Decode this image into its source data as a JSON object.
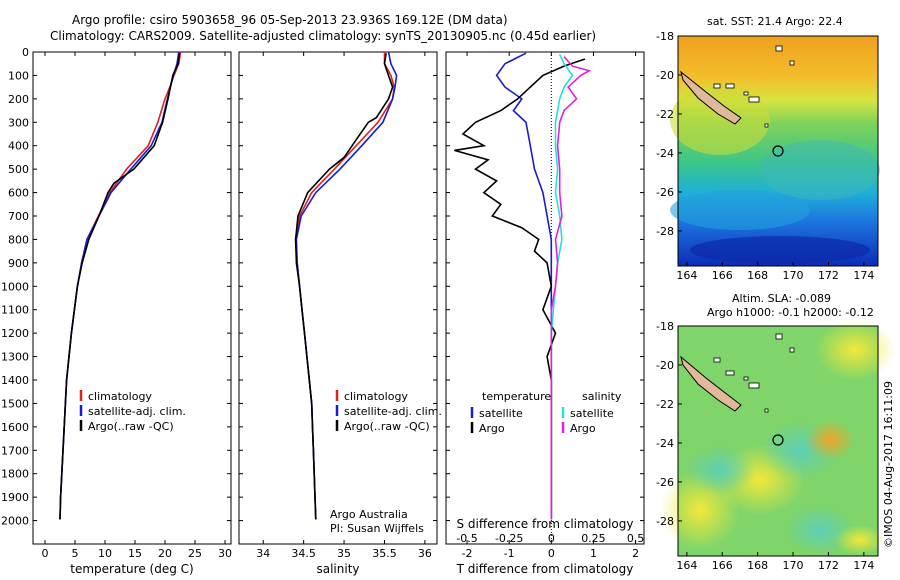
{
  "title_line1": "Argo profile: csiro 5903658_96 05-Sep-2013 23.936S 169.12E (DM data)",
  "title_line2": "Climatology: CARS2009. Satellite-adjusted climatology: synTS_20130905.nc (0.45d earlier)",
  "colors": {
    "climatology": "#dd2222",
    "satellite": "#1a1ad0",
    "argo": "#000000",
    "sat_salinity": "#22e0e0",
    "argo_salinity": "#e020e0"
  },
  "chart_data": [
    {
      "type": "line",
      "id": "temperature",
      "xlabel": "temperature (deg C)",
      "ylabel": "",
      "xlim": [
        -2,
        31
      ],
      "ylim": [
        0,
        2100
      ],
      "xticks": [
        0,
        5,
        10,
        15,
        20,
        25,
        30
      ],
      "yticks": [
        0,
        100,
        200,
        300,
        400,
        500,
        600,
        700,
        800,
        900,
        1000,
        1100,
        1200,
        1300,
        1400,
        1500,
        1600,
        1700,
        1800,
        1900,
        2000
      ],
      "legend": [
        "climatology",
        "satellite-adj. clim.",
        "Argo(..raw -QC)"
      ],
      "series": [
        {
          "name": "climatology",
          "color_key": "climatology",
          "points": [
            [
              22.6,
              0
            ],
            [
              22.3,
              50
            ],
            [
              21.5,
              100
            ],
            [
              20.8,
              150
            ],
            [
              20,
              200
            ],
            [
              18.8,
              300
            ],
            [
              17.2,
              400
            ],
            [
              13.6,
              500
            ],
            [
              10.8,
              600
            ],
            [
              8.9,
              700
            ],
            [
              7,
              800
            ],
            [
              6.1,
              900
            ],
            [
              5.4,
              1000
            ],
            [
              4.9,
              1100
            ],
            [
              4.4,
              1200
            ],
            [
              4,
              1300
            ],
            [
              3.6,
              1400
            ],
            [
              3.4,
              1500
            ],
            [
              3.2,
              1600
            ],
            [
              3,
              1700
            ],
            [
              2.8,
              1800
            ],
            [
              2.6,
              1900
            ],
            [
              2.5,
              1995
            ]
          ]
        },
        {
          "name": "satellite-adj. clim.",
          "color_key": "satellite",
          "points": [
            [
              22.3,
              0
            ],
            [
              22,
              50
            ],
            [
              21.4,
              100
            ],
            [
              20.9,
              150
            ],
            [
              20.4,
              200
            ],
            [
              19.5,
              300
            ],
            [
              17.7,
              400
            ],
            [
              14.3,
              500
            ],
            [
              11,
              600
            ],
            [
              9,
              700
            ],
            [
              7,
              800
            ],
            [
              6.1,
              900
            ],
            [
              5.4,
              1000
            ],
            [
              4.9,
              1100
            ],
            [
              4.4,
              1200
            ],
            [
              4,
              1300
            ],
            [
              3.6,
              1400
            ],
            [
              3.4,
              1500
            ],
            [
              3.2,
              1600
            ],
            [
              3,
              1700
            ],
            [
              2.8,
              1800
            ],
            [
              2.6,
              1900
            ],
            [
              2.5,
              1995
            ]
          ]
        },
        {
          "name": "Argo(..raw -QC)",
          "color_key": "argo",
          "points": [
            [
              22.4,
              5
            ],
            [
              22.2,
              50
            ],
            [
              21.3,
              100
            ],
            [
              20.9,
              150
            ],
            [
              20.5,
              200
            ],
            [
              19.6,
              300
            ],
            [
              18.2,
              400
            ],
            [
              14.8,
              500
            ],
            [
              11.5,
              560
            ],
            [
              10.5,
              600
            ],
            [
              9,
              700
            ],
            [
              7.3,
              800
            ],
            [
              6.2,
              900
            ],
            [
              5.4,
              1000
            ],
            [
              4.9,
              1100
            ],
            [
              4.4,
              1200
            ],
            [
              4,
              1300
            ],
            [
              3.6,
              1400
            ],
            [
              3.4,
              1500
            ],
            [
              3.2,
              1600
            ],
            [
              3,
              1700
            ],
            [
              2.8,
              1800
            ],
            [
              2.6,
              1900
            ],
            [
              2.5,
              1995
            ]
          ]
        }
      ]
    },
    {
      "type": "line",
      "id": "salinity",
      "xlabel": "salinity",
      "ylabel": "",
      "xlim": [
        33.7,
        36.15
      ],
      "ylim": [
        0,
        2100
      ],
      "xticks": [
        34,
        34.5,
        35,
        35.5,
        36
      ],
      "legend": [
        "climatology",
        "satellite-adj. clim.",
        "Argo(..raw -QC)"
      ],
      "annotation": [
        "Argo Australia",
        "PI: Susan Wijffels"
      ],
      "series": [
        {
          "name": "climatology",
          "color_key": "climatology",
          "points": [
            [
              35.5,
              0
            ],
            [
              35.5,
              50
            ],
            [
              35.58,
              100
            ],
            [
              35.62,
              150
            ],
            [
              35.6,
              200
            ],
            [
              35.42,
              300
            ],
            [
              35.15,
              400
            ],
            [
              34.88,
              500
            ],
            [
              34.6,
              600
            ],
            [
              34.45,
              700
            ],
            [
              34.4,
              800
            ],
            [
              34.42,
              900
            ],
            [
              34.45,
              1000
            ],
            [
              34.48,
              1100
            ],
            [
              34.51,
              1200
            ],
            [
              34.54,
              1300
            ],
            [
              34.57,
              1400
            ],
            [
              34.6,
              1500
            ],
            [
              34.61,
              1600
            ],
            [
              34.62,
              1700
            ],
            [
              34.63,
              1800
            ],
            [
              34.64,
              1900
            ],
            [
              34.65,
              1995
            ]
          ]
        },
        {
          "name": "satellite-adj. clim.",
          "color_key": "satellite",
          "points": [
            [
              35.55,
              0
            ],
            [
              35.58,
              50
            ],
            [
              35.65,
              100
            ],
            [
              35.63,
              150
            ],
            [
              35.6,
              200
            ],
            [
              35.48,
              300
            ],
            [
              35.22,
              400
            ],
            [
              34.95,
              500
            ],
            [
              34.65,
              600
            ],
            [
              34.47,
              700
            ],
            [
              34.41,
              800
            ],
            [
              34.42,
              900
            ],
            [
              34.45,
              1000
            ],
            [
              34.48,
              1100
            ],
            [
              34.51,
              1200
            ],
            [
              34.54,
              1300
            ],
            [
              34.57,
              1400
            ],
            [
              34.6,
              1500
            ],
            [
              34.61,
              1600
            ],
            [
              34.62,
              1700
            ],
            [
              34.63,
              1800
            ],
            [
              34.64,
              1900
            ],
            [
              34.65,
              1995
            ]
          ]
        },
        {
          "name": "Argo(..raw -QC)",
          "color_key": "argo",
          "points": [
            [
              35.52,
              5
            ],
            [
              35.5,
              50
            ],
            [
              35.55,
              100
            ],
            [
              35.6,
              150
            ],
            [
              35.55,
              200
            ],
            [
              35.4,
              280
            ],
            [
              35.3,
              300
            ],
            [
              35.2,
              350
            ],
            [
              35.1,
              400
            ],
            [
              35,
              450
            ],
            [
              34.82,
              500
            ],
            [
              34.55,
              600
            ],
            [
              34.43,
              700
            ],
            [
              34.4,
              800
            ],
            [
              34.41,
              900
            ],
            [
              34.45,
              1000
            ],
            [
              34.48,
              1100
            ],
            [
              34.51,
              1200
            ],
            [
              34.54,
              1300
            ],
            [
              34.57,
              1400
            ],
            [
              34.6,
              1500
            ],
            [
              34.61,
              1600
            ],
            [
              34.62,
              1700
            ],
            [
              34.63,
              1800
            ],
            [
              34.64,
              1900
            ],
            [
              34.65,
              1995
            ]
          ]
        }
      ]
    },
    {
      "type": "line",
      "id": "difference",
      "xlabel": "T difference from climatology",
      "xlabel_top": "S difference from climatology",
      "xlim": [
        -2.5,
        2.2
      ],
      "ylim": [
        0,
        2100
      ],
      "xticks": [
        -2,
        -1,
        0,
        1,
        2
      ],
      "xticks_top": [
        "-0.5",
        "-0.25",
        "0",
        "0.25",
        "0.5"
      ],
      "xticks_top_values": [
        -2,
        -1,
        0,
        1,
        2
      ],
      "legend_headers": [
        "temperature",
        "salinity"
      ],
      "legend": [
        "satellite",
        "Argo",
        "satellite",
        "Argo"
      ],
      "series": [
        {
          "name": "T satellite",
          "color_key": "satellite",
          "points": [
            [
              -0.6,
              5
            ],
            [
              -1.1,
              50
            ],
            [
              -1.3,
              100
            ],
            [
              -1.1,
              150
            ],
            [
              -0.7,
              200
            ],
            [
              -0.9,
              250
            ],
            [
              -0.6,
              300
            ],
            [
              -0.5,
              400
            ],
            [
              -0.4,
              500
            ],
            [
              -0.2,
              600
            ],
            [
              -0.1,
              700
            ],
            [
              0,
              800
            ],
            [
              0,
              900
            ],
            [
              0,
              1000
            ],
            [
              0,
              1200
            ],
            [
              0,
              1500
            ],
            [
              0,
              1995
            ]
          ]
        },
        {
          "name": "T Argo",
          "color_key": "argo",
          "points": [
            [
              0.8,
              30
            ],
            [
              0.3,
              60
            ],
            [
              -0.2,
              100
            ],
            [
              -0.5,
              150
            ],
            [
              -0.8,
              200
            ],
            [
              -1.2,
              250
            ],
            [
              -1.8,
              300
            ],
            [
              -2.1,
              350
            ],
            [
              -1.6,
              400
            ],
            [
              -2.3,
              420
            ],
            [
              -1.5,
              460
            ],
            [
              -1.8,
              500
            ],
            [
              -1.3,
              550
            ],
            [
              -1.6,
              600
            ],
            [
              -1.2,
              650
            ],
            [
              -1.4,
              700
            ],
            [
              -0.7,
              750
            ],
            [
              -0.3,
              800
            ],
            [
              -0.4,
              850
            ],
            [
              -0.1,
              900
            ],
            [
              0,
              1000
            ],
            [
              -0.2,
              1100
            ],
            [
              0.1,
              1200
            ],
            [
              -0.1,
              1300
            ],
            [
              0,
              1400
            ],
            [
              0,
              1600
            ],
            [
              0,
              1800
            ],
            [
              0,
              1995
            ]
          ]
        },
        {
          "name": "S satellite",
          "color_key": "sat_salinity",
          "points": [
            [
              0.2,
              10
            ],
            [
              0.3,
              50
            ],
            [
              0.5,
              100
            ],
            [
              0.3,
              150
            ],
            [
              0.2,
              200
            ],
            [
              0.1,
              300
            ],
            [
              0.1,
              400
            ],
            [
              0.15,
              500
            ],
            [
              0.1,
              600
            ],
            [
              0.2,
              700
            ],
            [
              0.25,
              800
            ],
            [
              0.15,
              900
            ],
            [
              0.1,
              1000
            ],
            [
              0.05,
              1100
            ],
            [
              0,
              1200
            ],
            [
              0,
              1500
            ],
            [
              0,
              1995
            ]
          ]
        },
        {
          "name": "S Argo",
          "color_key": "argo_salinity",
          "points": [
            [
              0.3,
              20
            ],
            [
              0.5,
              60
            ],
            [
              0.9,
              80
            ],
            [
              0.7,
              100
            ],
            [
              0.4,
              150
            ],
            [
              0.6,
              200
            ],
            [
              0.3,
              250
            ],
            [
              0.2,
              300
            ],
            [
              0.15,
              400
            ],
            [
              0.2,
              500
            ],
            [
              0.2,
              600
            ],
            [
              0.25,
              700
            ],
            [
              0.1,
              800
            ],
            [
              0.15,
              900
            ],
            [
              0.1,
              1000
            ],
            [
              0,
              1100
            ],
            [
              0,
              1200
            ],
            [
              0,
              1995
            ]
          ]
        }
      ]
    },
    {
      "type": "heatmap",
      "id": "sst_map",
      "title": "sat. SST: 21.4  Argo: 22.4",
      "xlim": [
        163.5,
        174.8
      ],
      "ylim": [
        -29.8,
        -18
      ],
      "xticks": [
        "164",
        "166",
        "168",
        "170",
        "172",
        "174"
      ],
      "yticks": [
        "-18",
        "-20",
        "-22",
        "-24",
        "-26",
        "-28"
      ],
      "marker": {
        "lon": 169.12,
        "lat": -23.94
      }
    },
    {
      "type": "heatmap",
      "id": "sla_map",
      "title": "Altim. SLA: -0.089",
      "title2": "Argo h1000: -0.1 h2000: -0.12",
      "xlim": [
        163.5,
        174.8
      ],
      "ylim": [
        -29.8,
        -18
      ],
      "xticks": [
        "164",
        "166",
        "168",
        "170",
        "172",
        "174"
      ],
      "yticks": [
        "-18",
        "-20",
        "-22",
        "-24",
        "-26",
        "-28"
      ],
      "marker": {
        "lon": 169.12,
        "lat": -23.94
      }
    }
  ],
  "stamp": "©IMOS 04-Aug-2017 16:11:09"
}
